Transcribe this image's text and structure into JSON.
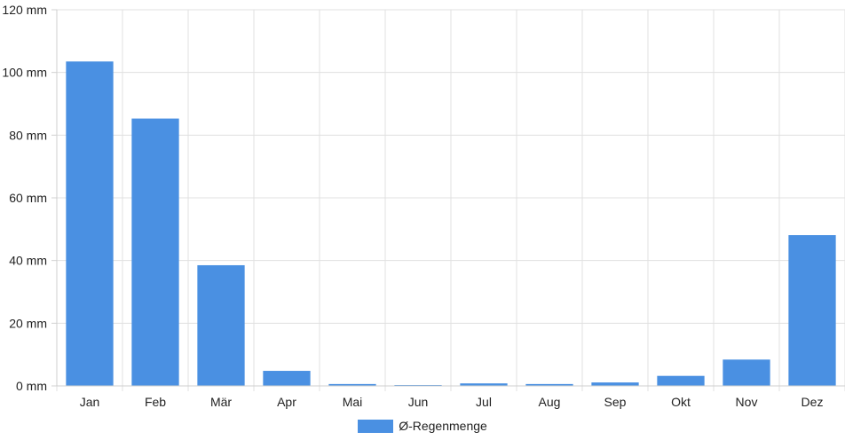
{
  "chart_data": {
    "type": "bar",
    "categories": [
      "Jan",
      "Feb",
      "Mär",
      "Apr",
      "Mai",
      "Jun",
      "Jul",
      "Aug",
      "Sep",
      "Okt",
      "Nov",
      "Dez"
    ],
    "series": [
      {
        "name": "Ø-Regenmenge",
        "values": [
          103.5,
          85.3,
          38.5,
          4.8,
          0.6,
          0.2,
          0.8,
          0.6,
          1.1,
          3.2,
          8.4,
          48.1
        ],
        "color": "#4a90e2"
      }
    ],
    "ylim": [
      0,
      120
    ],
    "y_ticks": [
      0,
      20,
      40,
      60,
      80,
      100,
      120
    ],
    "y_tick_labels": [
      "0 mm",
      "20 mm",
      "40 mm",
      "60 mm",
      "80 mm",
      "100 mm",
      "120 mm"
    ],
    "grid": true,
    "legend_position": "bottom-center"
  }
}
